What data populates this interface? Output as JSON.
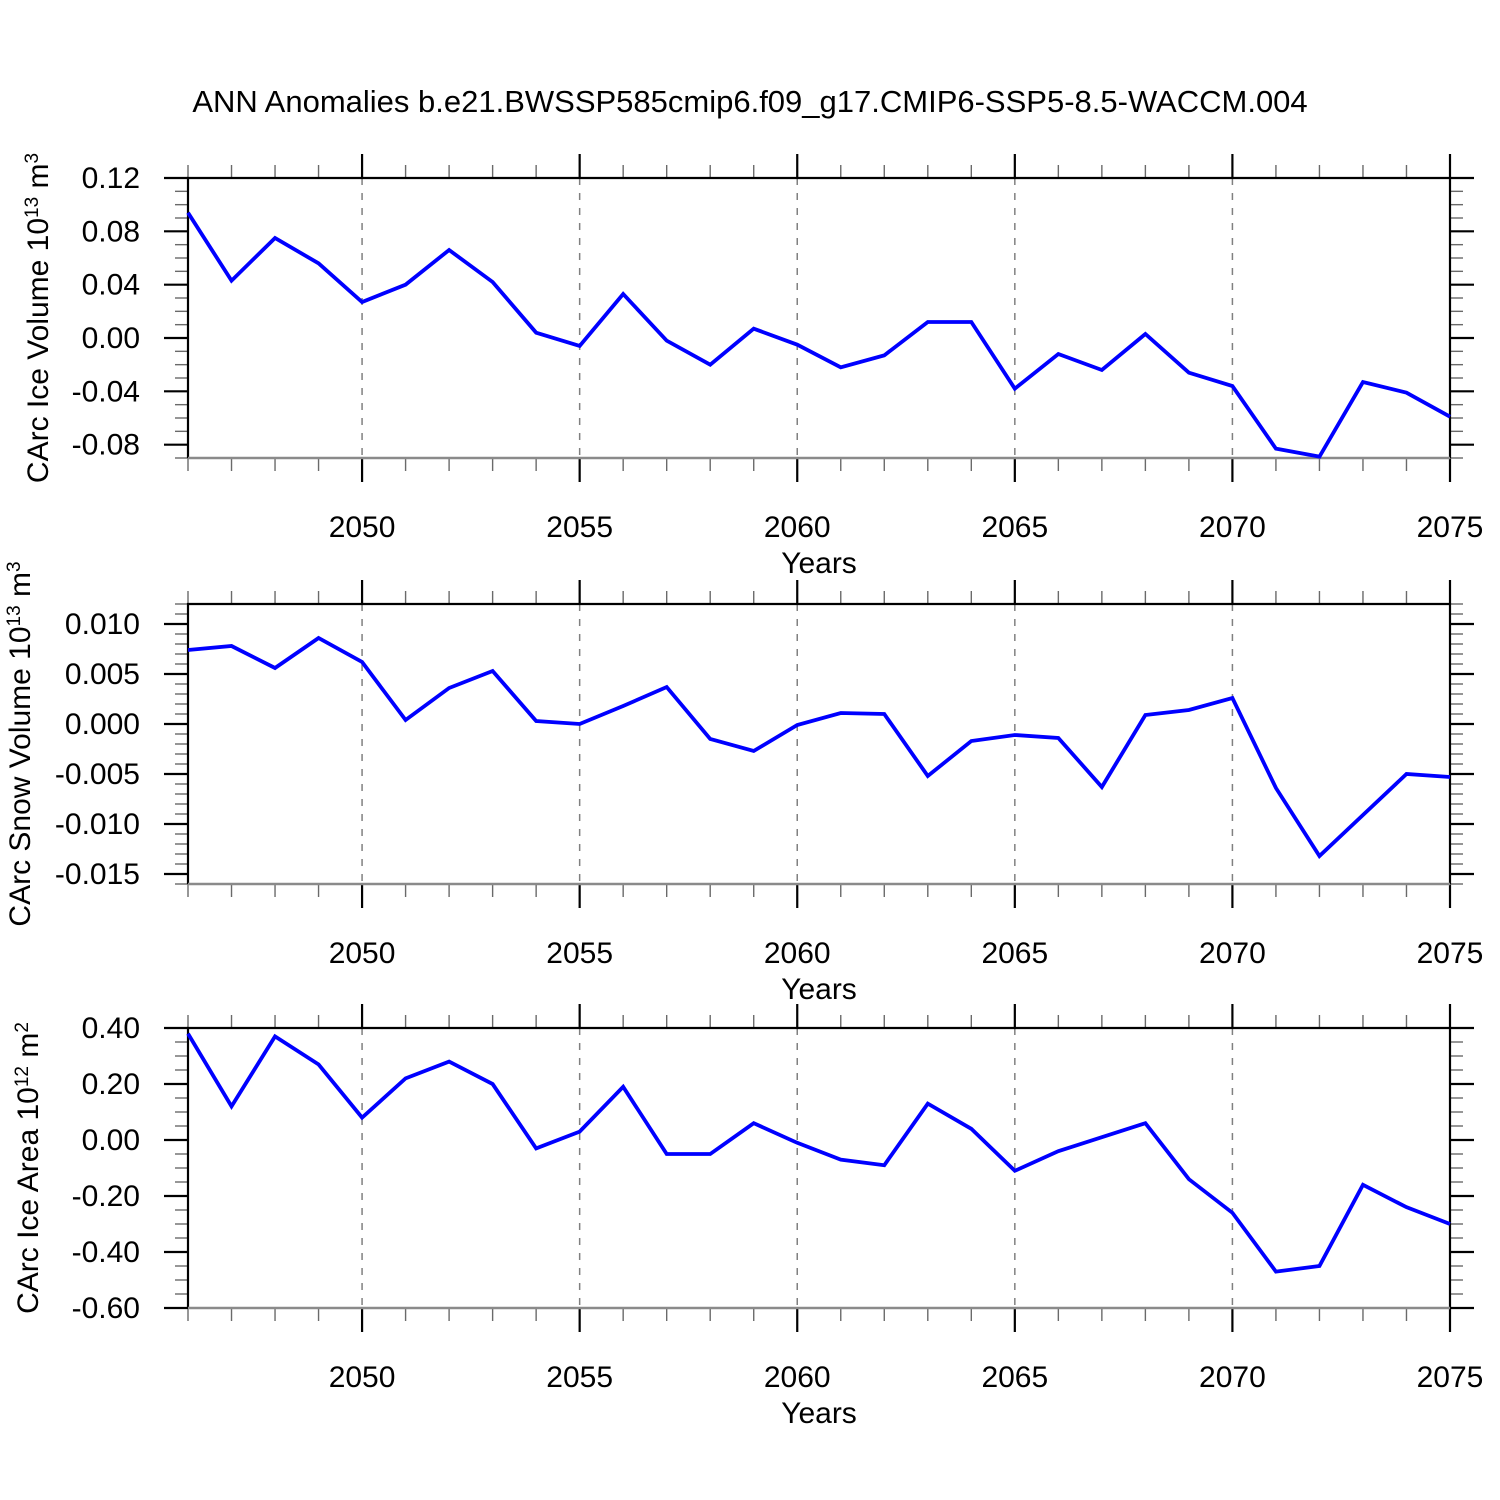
{
  "title": "ANN Anomalies b.e21.BWSSP585cmip6.f09_g17.CMIP6-SSP5-8.5-WACCM.004",
  "colors": {
    "line": "#0000ff",
    "axis": "#000000",
    "axis_bottom": "#8a8a8a",
    "grid_dashed": "#808080",
    "minor_tick": "#6a6a6a",
    "text": "#000000",
    "background": "#ffffff"
  },
  "chart_data": [
    {
      "type": "line",
      "series_name": "CArc Ice Volume",
      "ylabel_text": "CArc Ice Volume 10^13 m^3",
      "ylabel_parts": [
        {
          "t": "CArc Ice Volume 10"
        },
        {
          "t": "13",
          "sup": true
        },
        {
          "t": " m"
        },
        {
          "t": "3",
          "sup": true
        }
      ],
      "xlabel": "Years",
      "x": [
        2046,
        2047,
        2048,
        2049,
        2050,
        2051,
        2052,
        2053,
        2054,
        2055,
        2056,
        2057,
        2058,
        2059,
        2060,
        2061,
        2062,
        2063,
        2064,
        2065,
        2066,
        2067,
        2068,
        2069,
        2070,
        2071,
        2072,
        2073,
        2074,
        2075
      ],
      "values": [
        0.094,
        0.043,
        0.075,
        0.056,
        0.027,
        0.04,
        0.066,
        0.042,
        0.004,
        -0.006,
        0.033,
        -0.002,
        -0.02,
        0.007,
        -0.005,
        -0.022,
        -0.013,
        0.012,
        0.012,
        -0.038,
        -0.012,
        -0.024,
        0.003,
        -0.026,
        -0.036,
        -0.083,
        -0.089,
        -0.033,
        -0.041,
        -0.059
      ],
      "xlim": [
        2046,
        2075
      ],
      "ylim": [
        -0.09,
        0.12
      ],
      "yticks": [
        {
          "v": 0.12,
          "label": "0.12"
        },
        {
          "v": 0.08,
          "label": "0.08"
        },
        {
          "v": 0.04,
          "label": "0.04"
        },
        {
          "v": 0.0,
          "label": "0.00"
        },
        {
          "v": -0.04,
          "label": "-0.04"
        },
        {
          "v": -0.08,
          "label": "-0.08"
        }
      ],
      "yminor_step": 0.01,
      "xticks": [
        {
          "v": 2050,
          "label": "2050"
        },
        {
          "v": 2055,
          "label": "2055"
        },
        {
          "v": 2060,
          "label": "2060"
        },
        {
          "v": 2065,
          "label": "2065"
        },
        {
          "v": 2070,
          "label": "2070"
        },
        {
          "v": 2075,
          "label": "2075"
        }
      ],
      "xminor_step": 1,
      "grid_x_dashed": [
        2050,
        2055,
        2060,
        2065,
        2070
      ],
      "legend": "none"
    },
    {
      "type": "line",
      "series_name": "CArc Snow Volume",
      "ylabel_text": "CArc Snow Volume 10^13 m^3",
      "ylabel_parts": [
        {
          "t": "CArc Snow Volume 10"
        },
        {
          "t": "13",
          "sup": true
        },
        {
          "t": " m"
        },
        {
          "t": "3",
          "sup": true
        }
      ],
      "xlabel": "Years",
      "x": [
        2046,
        2047,
        2048,
        2049,
        2050,
        2051,
        2052,
        2053,
        2054,
        2055,
        2056,
        2057,
        2058,
        2059,
        2060,
        2061,
        2062,
        2063,
        2064,
        2065,
        2066,
        2067,
        2068,
        2069,
        2070,
        2071,
        2072,
        2073,
        2074,
        2075
      ],
      "values": [
        0.0074,
        0.0078,
        0.0056,
        0.0086,
        0.0062,
        0.0004,
        0.0036,
        0.0053,
        0.0003,
        0.0,
        0.0018,
        0.0037,
        -0.0015,
        -0.0027,
        -0.0001,
        0.0011,
        0.001,
        -0.0052,
        -0.0017,
        -0.0011,
        -0.0014,
        -0.0063,
        0.0009,
        0.0014,
        0.0026,
        -0.0064,
        -0.0132,
        -0.0091,
        -0.005,
        -0.0053
      ],
      "xlim": [
        2046,
        2075
      ],
      "ylim": [
        -0.016,
        0.012
      ],
      "yticks": [
        {
          "v": 0.01,
          "label": "0.010"
        },
        {
          "v": 0.005,
          "label": "0.005"
        },
        {
          "v": 0.0,
          "label": "0.000"
        },
        {
          "v": -0.005,
          "label": "-0.005"
        },
        {
          "v": -0.01,
          "label": "-0.010"
        },
        {
          "v": -0.015,
          "label": "-0.015"
        }
      ],
      "yminor_step": 0.001,
      "xticks": [
        {
          "v": 2050,
          "label": "2050"
        },
        {
          "v": 2055,
          "label": "2055"
        },
        {
          "v": 2060,
          "label": "2060"
        },
        {
          "v": 2065,
          "label": "2065"
        },
        {
          "v": 2070,
          "label": "2070"
        },
        {
          "v": 2075,
          "label": "2075"
        }
      ],
      "xminor_step": 1,
      "grid_x_dashed": [
        2050,
        2055,
        2060,
        2065,
        2070
      ],
      "legend": "none"
    },
    {
      "type": "line",
      "series_name": "CArc Ice Area",
      "ylabel_text": "CArc Ice Area 10^12 m^2",
      "ylabel_parts": [
        {
          "t": "CArc Ice Area 10"
        },
        {
          "t": "12",
          "sup": true
        },
        {
          "t": " m"
        },
        {
          "t": "2",
          "sup": true
        }
      ],
      "xlabel": "Years",
      "x": [
        2046,
        2047,
        2048,
        2049,
        2050,
        2051,
        2052,
        2053,
        2054,
        2055,
        2056,
        2057,
        2058,
        2059,
        2060,
        2061,
        2062,
        2063,
        2064,
        2065,
        2066,
        2067,
        2068,
        2069,
        2070,
        2071,
        2072,
        2073,
        2074,
        2075
      ],
      "values": [
        0.38,
        0.12,
        0.37,
        0.27,
        0.08,
        0.22,
        0.28,
        0.2,
        -0.03,
        0.03,
        0.19,
        -0.05,
        -0.05,
        0.06,
        -0.01,
        -0.07,
        -0.09,
        0.13,
        0.04,
        -0.11,
        -0.04,
        0.01,
        0.06,
        -0.14,
        -0.26,
        -0.47,
        -0.45,
        -0.16,
        -0.24,
        -0.3
      ],
      "xlim": [
        2046,
        2075
      ],
      "ylim": [
        -0.6,
        0.4
      ],
      "yticks": [
        {
          "v": 0.4,
          "label": "0.40"
        },
        {
          "v": 0.2,
          "label": "0.20"
        },
        {
          "v": 0.0,
          "label": "0.00"
        },
        {
          "v": -0.2,
          "label": "-0.20"
        },
        {
          "v": -0.4,
          "label": "-0.40"
        },
        {
          "v": -0.6,
          "label": "-0.60"
        }
      ],
      "yminor_step": 0.05,
      "xticks": [
        {
          "v": 2050,
          "label": "2050"
        },
        {
          "v": 2055,
          "label": "2055"
        },
        {
          "v": 2060,
          "label": "2060"
        },
        {
          "v": 2065,
          "label": "2065"
        },
        {
          "v": 2070,
          "label": "2070"
        },
        {
          "v": 2075,
          "label": "2075"
        }
      ],
      "xminor_step": 1,
      "grid_x_dashed": [
        2050,
        2055,
        2060,
        2065,
        2070
      ],
      "legend": "none"
    }
  ]
}
